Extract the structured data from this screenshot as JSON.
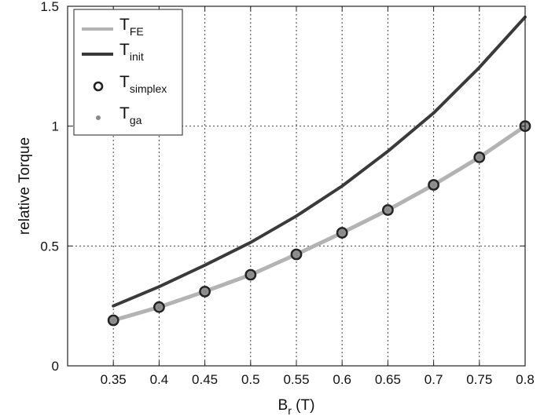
{
  "chart_data": {
    "type": "line",
    "x": [
      0.35,
      0.4,
      0.45,
      0.5,
      0.55,
      0.6,
      0.65,
      0.7,
      0.75,
      0.8
    ],
    "xlim": [
      0.3,
      0.8
    ],
    "ylim": [
      0,
      1.5
    ],
    "x_ticks": [
      "0.35",
      "0.4",
      "0.45",
      "0.5",
      "0.55",
      "0.6",
      "0.65",
      "0.7",
      "0.75",
      "0.8"
    ],
    "y_ticks": [
      "0",
      "0.5",
      "1",
      "1.5"
    ],
    "x_tick_values": [
      0.35,
      0.4,
      0.45,
      0.5,
      0.55,
      0.6,
      0.65,
      0.7,
      0.75,
      0.8
    ],
    "y_tick_values": [
      0,
      0.5,
      1,
      1.5
    ],
    "xlabel_main": "B",
    "xlabel_sub": "r",
    "xlabel_unit": " (T)",
    "ylabel": "relative Torque",
    "grid": true,
    "legend_position": "top-left",
    "series": [
      {
        "name_main": "T",
        "name_sub": "FE",
        "style": "line",
        "color": "#b3b3b3",
        "values": [
          0.19,
          0.245,
          0.31,
          0.38,
          0.465,
          0.555,
          0.65,
          0.755,
          0.87,
          1.0
        ]
      },
      {
        "name_main": "T",
        "name_sub": "init",
        "style": "line",
        "color": "#3a3a3a",
        "values": [
          0.25,
          0.33,
          0.42,
          0.515,
          0.625,
          0.75,
          0.895,
          1.055,
          1.245,
          1.455
        ]
      },
      {
        "name_main": "T",
        "name_sub": "simplex",
        "style": "marker-circle",
        "color": "#222222",
        "values": [
          0.19,
          0.245,
          0.31,
          0.38,
          0.465,
          0.555,
          0.65,
          0.755,
          0.87,
          1.0
        ]
      },
      {
        "name_main": "T",
        "name_sub": "ga",
        "style": "marker-dot",
        "color": "#8a8a8a",
        "values": [
          0.19,
          0.245,
          0.31,
          0.38,
          0.465,
          0.555,
          0.65,
          0.755,
          0.87,
          1.0
        ]
      }
    ]
  }
}
